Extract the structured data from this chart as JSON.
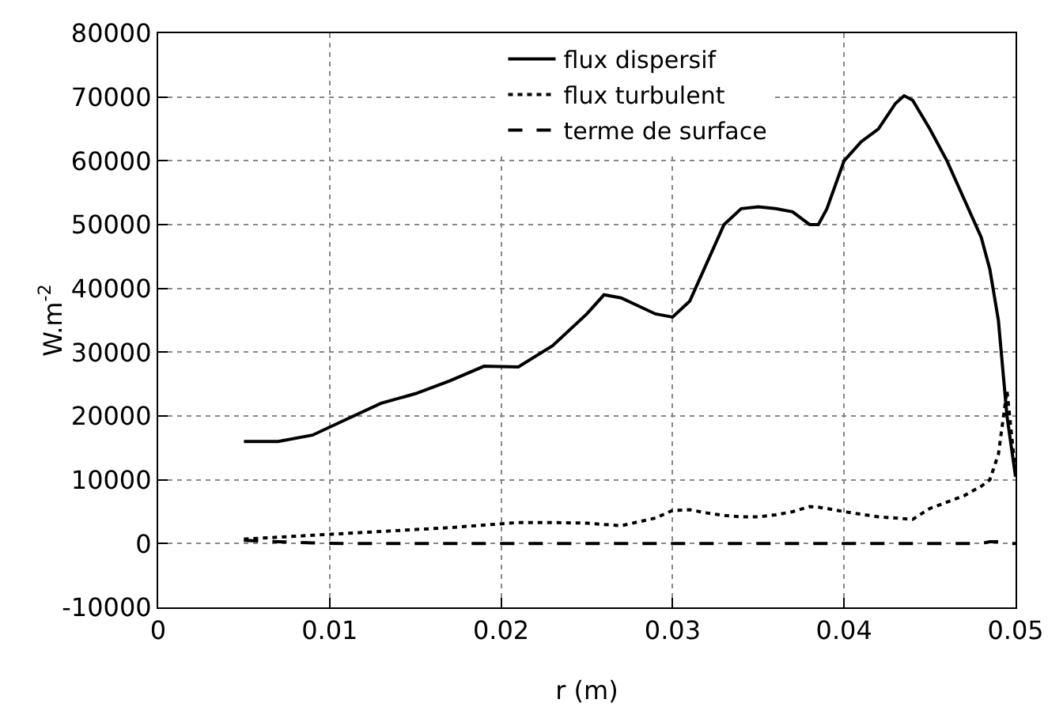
{
  "chart_data": {
    "type": "line",
    "xlabel": "r (m)",
    "ylabel": "W.m$^{-2}$",
    "xlim": [
      0,
      0.05
    ],
    "xticks": [
      0,
      0.01,
      0.02,
      0.03,
      0.04,
      0.05
    ],
    "ylim": [
      -10000,
      80000
    ],
    "yticks": [
      -10000,
      0,
      10000,
      20000,
      30000,
      40000,
      50000,
      60000,
      70000,
      80000
    ],
    "grid": true,
    "legend": "top right",
    "marker": "none",
    "x": [
      0.005,
      0.007,
      0.009,
      0.011,
      0.013,
      0.015,
      0.017,
      0.019,
      0.021,
      0.023,
      0.025,
      0.026,
      0.027,
      0.029,
      0.03,
      0.031,
      0.032,
      0.033,
      0.034,
      0.035,
      0.036,
      0.037,
      0.038,
      0.0385,
      0.039,
      0.04,
      0.041,
      0.042,
      0.043,
      0.0435,
      0.044,
      0.045,
      0.046,
      0.047,
      0.048,
      0.0485,
      0.049,
      0.0495,
      0.05
    ],
    "series": [
      {
        "name": "flux dispersif",
        "color": "#000000",
        "line_style": "solid",
        "values": [
          16000,
          16000,
          17000,
          19500,
          22000,
          23500,
          25500,
          27800,
          27700,
          31000,
          36000,
          39000,
          38500,
          36000,
          35500,
          38000,
          44000,
          50000,
          52500,
          52800,
          52500,
          52000,
          50000,
          50000,
          52500,
          60000,
          63000,
          65000,
          69000,
          70200,
          69500,
          65000,
          60000,
          54000,
          48000,
          43000,
          35000,
          20000,
          10500
        ]
      },
      {
        "name": "flux turbulent",
        "color": "#000000",
        "line_style": "dotted",
        "values": [
          700,
          1000,
          1300,
          1600,
          1900,
          2200,
          2500,
          2900,
          3300,
          3300,
          3200,
          3000,
          2800,
          4000,
          5200,
          5300,
          4800,
          4400,
          4200,
          4200,
          4500,
          5000,
          5800,
          5700,
          5500,
          5000,
          4600,
          4200,
          4000,
          3900,
          3800,
          5500,
          6500,
          7500,
          9000,
          10000,
          14000,
          24000,
          11000
        ]
      },
      {
        "name": "terme de surface",
        "color": "#000000",
        "line_style": "dashed",
        "values": [
          500,
          300,
          100,
          0,
          0,
          0,
          0,
          0,
          0,
          0,
          0,
          0,
          0,
          0,
          0,
          0,
          0,
          0,
          0,
          0,
          0,
          0,
          0,
          0,
          0,
          0,
          0,
          0,
          0,
          0,
          0,
          0,
          0,
          0,
          0,
          300,
          300,
          0,
          0
        ]
      }
    ]
  }
}
